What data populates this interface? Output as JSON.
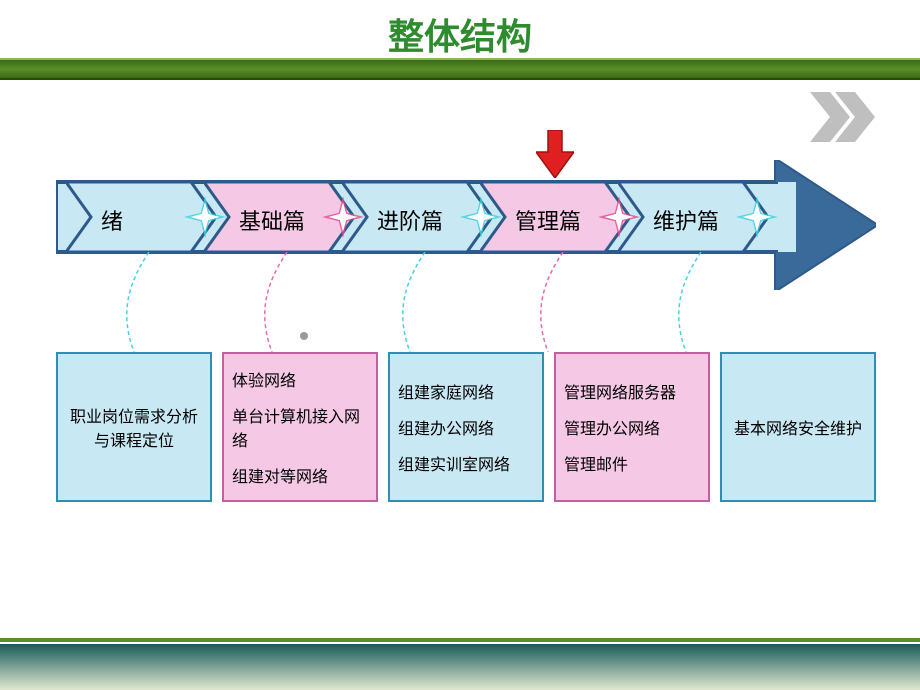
{
  "title": {
    "text": "整体结构",
    "color": "#2e8b2e"
  },
  "header_band_color": "#4a7a1a",
  "header_chevron_color": "#bfbfbf",
  "arrow": {
    "outline_color": "#2e5a8a",
    "outline_width": 4,
    "shaft_fill": "#c8e8f4",
    "head_fill": "#3a6a9a",
    "star_glow": "#3ad0e0",
    "star_core": "#ffffff"
  },
  "stages": [
    {
      "label": "绪",
      "fill": "#c8e8f4",
      "star_glow": "#3ad0e0",
      "connector": "#4ad0dd",
      "box_fill": "#c8e8f4",
      "box_border": "#2e8fb0",
      "align": "center",
      "items": [
        "职业岗位需求分析与课程定位"
      ]
    },
    {
      "label": "基础篇",
      "fill": "#f5c9e6",
      "star_glow": "#e04a8a",
      "connector": "#e86aa8",
      "box_fill": "#f5c9e6",
      "box_border": "#c060a0",
      "align": "left",
      "items": [
        "体验网络",
        "单台计算机接入网络",
        "组建对等网络"
      ]
    },
    {
      "label": "进阶篇",
      "fill": "#c8e8f4",
      "star_glow": "#3ad0e0",
      "connector": "#4ad0dd",
      "box_fill": "#c8e8f4",
      "box_border": "#2e8fb0",
      "align": "left",
      "items": [
        "组建家庭网络",
        "组建办公网络",
        "组建实训室网络"
      ]
    },
    {
      "label": "管理篇",
      "fill": "#f5c9e6",
      "star_glow": "#e04a8a",
      "connector": "#e86aa8",
      "box_fill": "#f5c9e6",
      "box_border": "#c060a0",
      "align": "left",
      "items": [
        "管理网络服务器",
        "管理办公网络",
        "管理邮件"
      ],
      "callout": true
    },
    {
      "label": "维护篇",
      "fill": "#c8e8f4",
      "star_glow": "#3ad0e0",
      "connector": "#4ad0dd",
      "box_fill": "#c8e8f4",
      "box_border": "#2e8fb0",
      "align": "center",
      "items": [
        "基本网络安全维护"
      ]
    }
  ],
  "callout": {
    "fill": "#e02020",
    "stroke": "#a01010"
  },
  "footer": {
    "top_line": "#5a8e2a",
    "gradient_from": "#1a5a5a",
    "gradient_to": "#e0e8d0"
  },
  "layout": {
    "chevron_width": 150,
    "chevron_height": 70,
    "chevron_overlap": 12,
    "star_offset_right": -10
  }
}
